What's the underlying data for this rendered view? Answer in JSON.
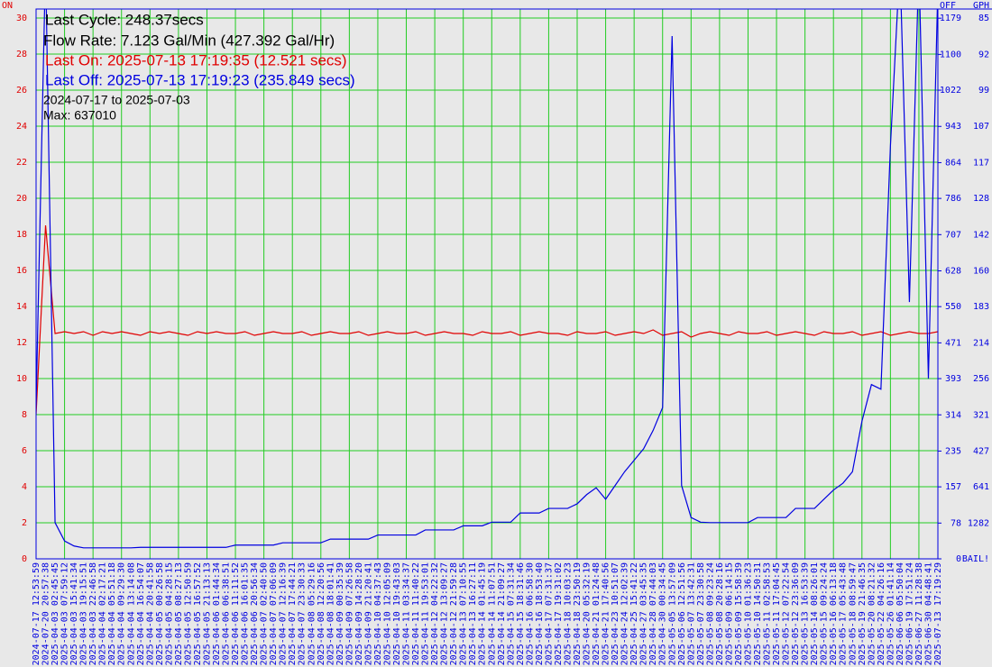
{
  "chart_data": {
    "type": "line",
    "header": [
      "Last Cycle: 248.37secs",
      "Flow Rate: 7.123 Gal/Min (427.392 Gal/Hr)"
    ],
    "last_on": "Last On: 2025-07-13 17:19:35 (12.521 secs)",
    "last_off": "Last Off: 2025-07-13 17:19:23 (235.849 secs)",
    "range": "2024-07-17 to 2025-07-03",
    "max": "Max: 637010",
    "ylabel": "ON",
    "y2label": "OFF",
    "y3label": "GPH",
    "categories": [
      "2024-07-17 12:53:59",
      "2024-07-20 20:57:38",
      "2025-04-03 02:45:45",
      "2025-04-03 07:59:12",
      "2025-04-03 15:41:34",
      "2025-04-03 19:15:51",
      "2025-04-03 22:46:58",
      "2025-04-04 02:17:21",
      "2025-04-04 05:51:18",
      "2025-04-04 09:29:30",
      "2025-04-04 13:14:08",
      "2025-04-04 16:54:07",
      "2025-04-04 20:41:58",
      "2025-04-05 00:26:58",
      "2025-04-05 04:28:15",
      "2025-04-05 08:27:13",
      "2025-04-05 12:50:59",
      "2025-04-05 16:57:52",
      "2025-04-05 21:13:13",
      "2025-04-06 01:44:34",
      "2025-04-06 06:38:51",
      "2025-04-06 11:11:52",
      "2025-04-06 16:01:35",
      "2025-04-06 20:56:34",
      "2025-04-07 02:40:50",
      "2025-04-07 07:06:09",
      "2025-04-07 12:16:39",
      "2025-04-07 17:44:21",
      "2025-04-07 23:30:33",
      "2025-04-08 05:29:16",
      "2025-04-08 12:20:56",
      "2025-04-08 18:01:41",
      "2025-04-09 00:35:39",
      "2025-04-09 07:26:58",
      "2025-04-09 14:28:20",
      "2025-04-09 21:20:41",
      "2025-04-10 04:37:43",
      "2025-04-10 12:05:09",
      "2025-04-10 19:43:03",
      "2025-04-11 03:34:37",
      "2025-04-11 11:40:22",
      "2025-04-11 19:53:01",
      "2025-04-12 04:22:32",
      "2025-04-12 13:09:27",
      "2025-04-12 21:59:28",
      "2025-04-13 07:10:55",
      "2025-04-13 16:27:11",
      "2025-04-14 01:45:19",
      "2025-04-14 11:07:51",
      "2025-04-14 21:09:27",
      "2025-04-15 07:31:34",
      "2025-04-15 18:31:46",
      "2025-04-16 06:58:30",
      "2025-04-16 18:53:40",
      "2025-04-17 07:31:37",
      "2025-04-17 19:31:02",
      "2025-04-18 10:03:23",
      "2025-04-18 23:50:19",
      "2025-04-20 05:32:19",
      "2025-04-21 01:24:48",
      "2025-04-21 17:40:56",
      "2025-04-23 10:51:07",
      "2025-04-24 12:02:39",
      "2025-04-25 15:41:22",
      "2025-04-27 03:45:35",
      "2025-04-28 07:44:03",
      "2025-04-30 00:34:45",
      "2025-05-05 13:57:09",
      "2025-05-06 12:51:56",
      "2025-05-07 13:42:31",
      "2025-05-07 23:30:58",
      "2025-05-08 09:23:24",
      "2025-05-08 20:28:16",
      "2025-05-09 06:14:15",
      "2025-05-09 15:58:39",
      "2025-05-10 01:36:23",
      "2025-05-10 14:50:31",
      "2025-05-11 02:58:53",
      "2025-05-11 17:04:45",
      "2025-05-12 07:22:54",
      "2025-05-12 23:36:09",
      "2025-05-13 16:53:39",
      "2025-05-14 08:26:01",
      "2025-05-15 09:24:24",
      "2025-05-16 06:13:18",
      "2025-05-17 05:43:48",
      "2025-05-18 08:59:47",
      "2025-05-19 21:46:35",
      "2025-05-20 08:21:32",
      "2025-05-22 04:26:16",
      "2025-05-26 01:41:14",
      "2025-06-06 05:50:04",
      "2025-06-19 17:51:24",
      "2025-06-27 11:28:38",
      "2025-06-30 04:48:41",
      "2025-07-13 17:19:29"
    ],
    "series": [
      {
        "name": "ON",
        "color": "#e00000",
        "values": [
          8,
          18.5,
          12.5,
          12.6,
          12.5,
          12.6,
          12.4,
          12.6,
          12.5,
          12.6,
          12.5,
          12.4,
          12.6,
          12.5,
          12.6,
          12.5,
          12.4,
          12.6,
          12.5,
          12.6,
          12.5,
          12.5,
          12.6,
          12.4,
          12.5,
          12.6,
          12.5,
          12.5,
          12.6,
          12.4,
          12.5,
          12.6,
          12.5,
          12.5,
          12.6,
          12.4,
          12.5,
          12.6,
          12.5,
          12.5,
          12.6,
          12.4,
          12.5,
          12.6,
          12.5,
          12.5,
          12.4,
          12.6,
          12.5,
          12.5,
          12.6,
          12.4,
          12.5,
          12.6,
          12.5,
          12.5,
          12.4,
          12.6,
          12.5,
          12.5,
          12.6,
          12.4,
          12.5,
          12.6,
          12.5,
          12.7,
          12.4,
          12.5,
          12.6,
          12.3,
          12.5,
          12.6,
          12.5,
          12.4,
          12.6,
          12.5,
          12.5,
          12.6,
          12.4,
          12.5,
          12.6,
          12.5,
          12.4,
          12.6,
          12.5,
          12.5,
          12.6,
          12.4,
          12.5,
          12.6,
          12.4,
          12.5,
          12.6,
          12.5,
          12.5,
          12.6
        ]
      },
      {
        "name": "OFF",
        "color": "#0000e0",
        "axis": "y2",
        "values": [
          334,
          1300,
          79,
          39,
          28,
          24,
          24,
          24,
          24,
          24,
          24,
          25,
          25,
          25,
          25,
          25,
          25,
          25,
          25,
          25,
          25,
          30,
          30,
          30,
          30,
          30,
          35,
          35,
          35,
          35,
          35,
          43,
          43,
          43,
          43,
          43,
          52,
          52,
          52,
          52,
          52,
          63,
          63,
          63,
          63,
          72,
          72,
          72,
          80,
          80,
          80,
          100,
          100,
          100,
          110,
          110,
          110,
          120,
          140,
          155,
          130,
          160,
          190,
          215,
          240,
          280,
          330,
          1140,
          160,
          90,
          80,
          79,
          79,
          79,
          79,
          79,
          90,
          90,
          90,
          90,
          110,
          110,
          110,
          130,
          150,
          165,
          190,
          300,
          380,
          370,
          900,
          1300,
          560,
          1300,
          393,
          1250
        ]
      }
    ],
    "ylim": [
      0,
      30.5
    ],
    "yticks": [
      0,
      2,
      4,
      6,
      8,
      10,
      12,
      14,
      16,
      18,
      20,
      22,
      24,
      26,
      28,
      30
    ],
    "y2lim": [
      0,
      1199
    ],
    "y2ticks": [
      0,
      78,
      157,
      235,
      314,
      393,
      471,
      550,
      628,
      707,
      786,
      864,
      943,
      1022,
      1100,
      1179
    ],
    "y3ticks": [
      {
        "value": 0,
        "label": "BAIL!"
      },
      {
        "value": 78,
        "label": "1282"
      },
      {
        "value": 157,
        "label": "641"
      },
      {
        "value": 235,
        "label": "427"
      },
      {
        "value": 314,
        "label": "321"
      },
      {
        "value": 393,
        "label": "256"
      },
      {
        "value": 471,
        "label": "214"
      },
      {
        "value": 550,
        "label": "183"
      },
      {
        "value": 628,
        "label": "160"
      },
      {
        "value": 707,
        "label": "142"
      },
      {
        "value": 786,
        "label": "128"
      },
      {
        "value": 864,
        "label": "117"
      },
      {
        "value": 943,
        "label": "107"
      },
      {
        "value": 1022,
        "label": "99"
      },
      {
        "value": 1100,
        "label": "92"
      },
      {
        "value": 1179,
        "label": "85"
      }
    ],
    "grid": true
  }
}
